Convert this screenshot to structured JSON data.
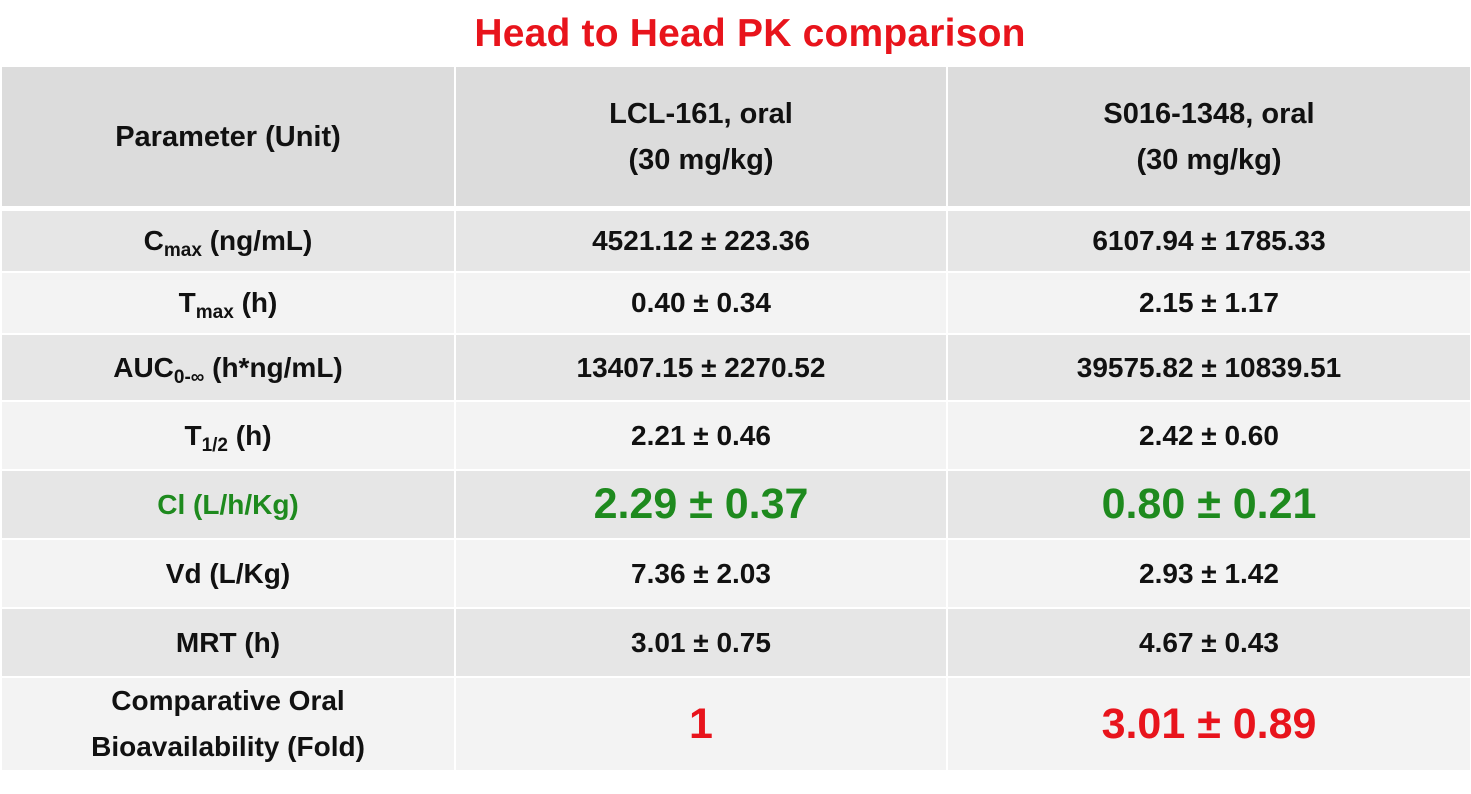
{
  "title": "Head to Head PK comparison",
  "table": {
    "header": {
      "parameter": "Parameter (Unit)",
      "col1_line1": "LCL-161, oral",
      "col1_line2": "(30 mg/kg)",
      "col2_line1": "S016-1348, oral",
      "col2_line2": "(30 mg/kg)"
    },
    "rows": [
      {
        "param_main": "C",
        "param_sub": "max",
        "param_unit": " (ng/mL)",
        "v1": "4521.12 ± 223.36",
        "v2": "6107.94 ± 1785.33"
      },
      {
        "param_main": "T",
        "param_sub": "max",
        "param_unit": " (h)",
        "v1": "0.40 ± 0.34",
        "v2": "2.15 ± 1.17"
      },
      {
        "param_main": "AUC",
        "param_sub": "0-∞",
        "param_unit": " (h*ng/mL)",
        "v1": "13407.15 ± 2270.52",
        "v2": "39575.82 ± 10839.51"
      },
      {
        "param_main": "T",
        "param_sub": "1/2",
        "param_unit": " (h)",
        "v1": "2.21 ± 0.46",
        "v2": "2.42 ± 0.60"
      },
      {
        "param": "Cl (L/h/Kg)",
        "v1": "2.29 ± 0.37",
        "v2": "0.80 ± 0.21"
      },
      {
        "param": "Vd (L/Kg)",
        "v1": "7.36 ± 2.03",
        "v2": "2.93 ± 1.42"
      },
      {
        "param": "MRT (h)",
        "v1": "3.01 ± 0.75",
        "v2": "4.67 ± 0.43"
      },
      {
        "param_line1": "Comparative Oral",
        "param_line2": "Bioavailability (Fold)",
        "v1": "1",
        "v2": "3.01 ± 0.89"
      }
    ]
  },
  "colors": {
    "title": "#e8141c",
    "highlight_green": "#1e8a1e",
    "highlight_red": "#e8141c",
    "header_bg": "#dcdcdc",
    "row_dark": "#e6e6e6",
    "row_light": "#f3f3f3"
  }
}
